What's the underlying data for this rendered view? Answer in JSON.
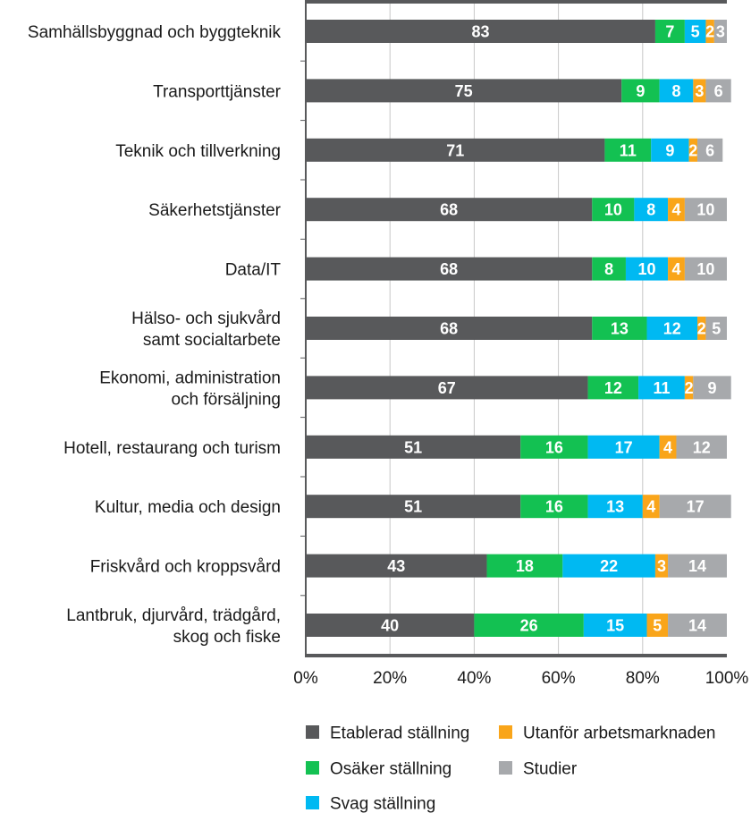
{
  "chart_data": {
    "type": "bar",
    "orientation": "horizontal",
    "stacked": true,
    "title": "",
    "xlabel": "",
    "ylabel": "",
    "xlim": [
      0,
      100
    ],
    "x_ticks": [
      "0%",
      "20%",
      "40%",
      "60%",
      "80%",
      "100%"
    ],
    "grid": true,
    "legend_position": "bottom",
    "categories": [
      [
        "Samhällsbyggnad och byggteknik"
      ],
      [
        "Transporttjänster"
      ],
      [
        "Teknik och tillverkning"
      ],
      [
        "Säkerhetstjänster"
      ],
      [
        "Data/IT"
      ],
      [
        "Hälso- och sjukvård",
        "samt socialtarbete"
      ],
      [
        "Ekonomi, administration",
        "och försäljning"
      ],
      [
        "Hotell, restaurang och turism"
      ],
      [
        "Kultur, media och design"
      ],
      [
        "Friskvård och kroppsvård"
      ],
      [
        "Lantbruk, djurvård, trädgård,",
        "skog och fiske"
      ]
    ],
    "series": [
      {
        "name": "Etablerad ställning",
        "color": "#58595b",
        "values": [
          83,
          75,
          71,
          68,
          68,
          68,
          67,
          51,
          51,
          43,
          40
        ]
      },
      {
        "name": "Osäker ställning",
        "color": "#13c152",
        "values": [
          7,
          9,
          11,
          10,
          8,
          13,
          12,
          16,
          16,
          18,
          26
        ]
      },
      {
        "name": "Svag ställning",
        "color": "#00b9f2",
        "values": [
          5,
          8,
          9,
          8,
          10,
          12,
          11,
          17,
          13,
          22,
          15
        ]
      },
      {
        "name": "Utanför arbetsmarknaden",
        "color": "#f9a51a",
        "values": [
          2,
          3,
          2,
          4,
          4,
          2,
          2,
          4,
          4,
          3,
          5
        ]
      },
      {
        "name": "Studier",
        "color": "#a7a9ac",
        "values": [
          3,
          6,
          6,
          10,
          10,
          5,
          9,
          12,
          17,
          14,
          14
        ]
      }
    ],
    "legend_order": [
      0,
      3,
      1,
      4,
      2
    ]
  }
}
